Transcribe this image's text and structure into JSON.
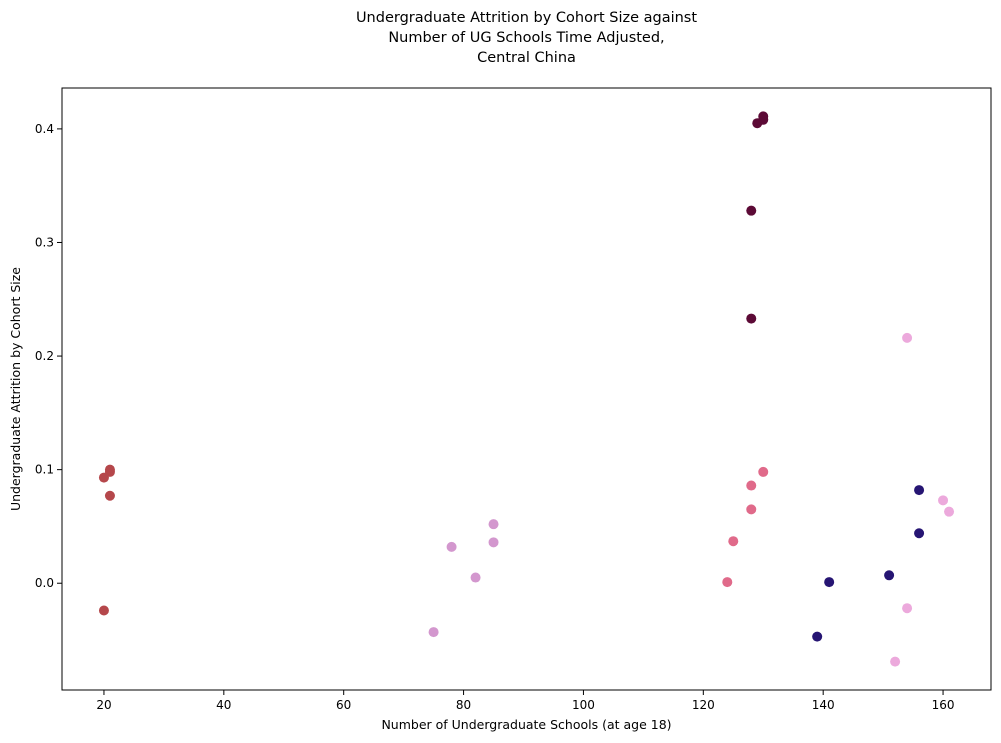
{
  "chart_data": {
    "type": "scatter",
    "title": "Undergraduate Attrition by Cohort Size against\nNumber of UG Schools Time Adjusted,\nCentral China",
    "xlabel": "Number of Undergraduate Schools (at age 18)",
    "ylabel": "Undergraduate Attrition by Cohort Size",
    "xlim": [
      13,
      168
    ],
    "ylim": [
      -0.094,
      0.436
    ],
    "xticks": [
      20,
      40,
      60,
      80,
      100,
      120,
      140,
      160
    ],
    "yticks": [
      0.0,
      0.1,
      0.2,
      0.3,
      0.4
    ],
    "xtick_labels": [
      "20",
      "40",
      "60",
      "80",
      "100",
      "120",
      "140",
      "160"
    ],
    "ytick_labels": [
      "0.0",
      "0.1",
      "0.2",
      "0.3",
      "0.4"
    ],
    "grid": false,
    "series": [
      {
        "color": "#b5474b",
        "points": [
          [
            20,
            0.093
          ],
          [
            21,
            0.098
          ],
          [
            21,
            0.1
          ],
          [
            21,
            0.077
          ],
          [
            20,
            -0.024
          ]
        ]
      },
      {
        "color": "#d397ce",
        "points": [
          [
            75,
            -0.043
          ],
          [
            78,
            0.032
          ],
          [
            82,
            0.005
          ],
          [
            85,
            0.036
          ],
          [
            85,
            0.052
          ]
        ]
      },
      {
        "color": "#e06a8a",
        "points": [
          [
            124,
            0.001
          ],
          [
            125,
            0.037
          ],
          [
            128,
            0.065
          ],
          [
            128,
            0.086
          ],
          [
            130,
            0.098
          ]
        ]
      },
      {
        "color": "#5c0a36",
        "points": [
          [
            128,
            0.233
          ],
          [
            128,
            0.328
          ],
          [
            129,
            0.405
          ],
          [
            130,
            0.408
          ],
          [
            130,
            0.411
          ]
        ]
      },
      {
        "color": "#261573",
        "points": [
          [
            139,
            -0.047
          ],
          [
            141,
            0.001
          ],
          [
            151,
            0.007
          ],
          [
            156,
            0.044
          ],
          [
            156,
            0.082
          ]
        ]
      },
      {
        "color": "#eca9dc",
        "points": [
          [
            152,
            -0.069
          ],
          [
            154,
            -0.022
          ],
          [
            154,
            0.216
          ],
          [
            160,
            0.073
          ],
          [
            161,
            0.063
          ]
        ]
      }
    ]
  }
}
